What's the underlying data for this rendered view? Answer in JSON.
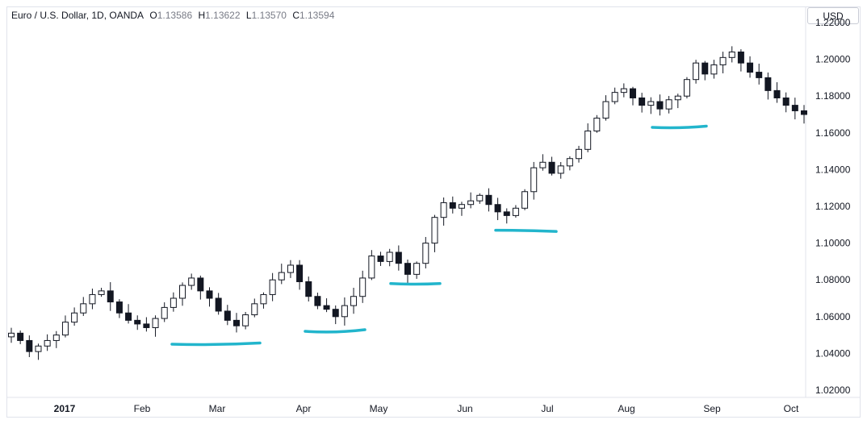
{
  "legend": {
    "symbol": "Euro / U.S. Dollar, 1D, OANDA",
    "o_label": "O",
    "o_value": "1.13586",
    "h_label": "H",
    "h_value": "1.13622",
    "l_label": "L",
    "l_value": "1.13570",
    "c_label": "C",
    "c_value": "1.13594"
  },
  "currency_button": "USD",
  "colors": {
    "candle": "#131722",
    "annotation": "#22b5cc",
    "grid_border": "#e0e3eb"
  },
  "chart_data": {
    "type": "candlestick",
    "title": "Euro / U.S. Dollar, 1D, OANDA",
    "ylim": [
      1.01,
      1.22
    ],
    "y_ticks": [
      "1.02000",
      "1.04000",
      "1.06000",
      "1.08000",
      "1.10000",
      "1.12000",
      "1.14000",
      "1.16000",
      "1.18000",
      "1.20000",
      "1.22000"
    ],
    "x_ticks": [
      "2017",
      "Feb",
      "Mar",
      "Apr",
      "May",
      "Jun",
      "Jul",
      "Aug",
      "Sep",
      "Oct"
    ],
    "grid": false,
    "series": [
      {
        "values": [
          1.051,
          1.047,
          1.041,
          1.044,
          1.047,
          1.05,
          1.057,
          1.062,
          1.067,
          1.072,
          1.074,
          1.068,
          1.062,
          1.058,
          1.056,
          1.054,
          1.059,
          1.065,
          1.07,
          1.077,
          1.081,
          1.074,
          1.07,
          1.063,
          1.058,
          1.055,
          1.061,
          1.067,
          1.072,
          1.08,
          1.084,
          1.088,
          1.079,
          1.071,
          1.066,
          1.064,
          1.06,
          1.066,
          1.071,
          1.081,
          1.093,
          1.09,
          1.095,
          1.089,
          1.083,
          1.089,
          1.1,
          1.114,
          1.122,
          1.119,
          1.121,
          1.123,
          1.126,
          1.121,
          1.117,
          1.115,
          1.119,
          1.128,
          1.141,
          1.144,
          1.138,
          1.142,
          1.146,
          1.151,
          1.161,
          1.168,
          1.177,
          1.182,
          1.184,
          1.179,
          1.175,
          1.177,
          1.173,
          1.178,
          1.18,
          1.189,
          1.198,
          1.192,
          1.197,
          1.201,
          1.204,
          1.198,
          1.193,
          1.19,
          1.183,
          1.179,
          1.175,
          1.172,
          1.17
        ]
      }
    ],
    "annotations": [
      {
        "label": "",
        "y": 1.045
      },
      {
        "label": "",
        "y": 1.052
      },
      {
        "label": "",
        "y": 1.078
      },
      {
        "label": "",
        "y": 1.107
      },
      {
        "label": "",
        "y": 1.163
      }
    ]
  }
}
